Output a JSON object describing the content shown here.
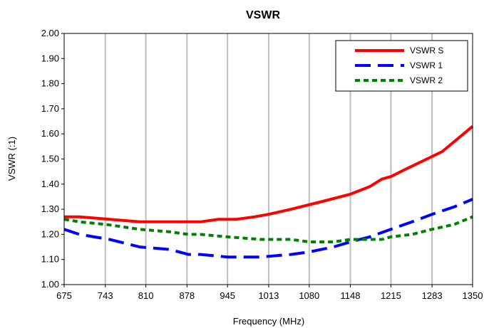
{
  "chart_data": {
    "type": "line",
    "title": "VSWR",
    "xlabel": "Frequency (MHz)",
    "ylabel": "VSWR (:1)",
    "xlim": [
      675,
      1350
    ],
    "ylim": [
      1.0,
      2.0
    ],
    "x_ticks": [
      675,
      743,
      810,
      878,
      945,
      1013,
      1080,
      1148,
      1215,
      1283,
      1350
    ],
    "y_ticks": [
      1.0,
      1.1,
      1.2,
      1.3,
      1.4,
      1.5,
      1.6,
      1.7,
      1.8,
      1.9,
      2.0
    ],
    "y_tick_labels": [
      "1.00",
      "1.10",
      "1.20",
      "1.30",
      "1.40",
      "1.50",
      "1.60",
      "1.70",
      "1.80",
      "1.90",
      "2.00"
    ],
    "grid": "vertical",
    "legend_position": "top-right",
    "series": [
      {
        "name": "VSWR S",
        "color": "#ff0000",
        "dash": "solid",
        "x": [
          675,
          700,
          750,
          800,
          850,
          880,
          900,
          930,
          960,
          990,
          1013,
          1050,
          1100,
          1148,
          1180,
          1200,
          1215,
          1240,
          1283,
          1300,
          1320,
          1350
        ],
        "y": [
          1.27,
          1.27,
          1.26,
          1.25,
          1.25,
          1.25,
          1.25,
          1.26,
          1.26,
          1.27,
          1.28,
          1.3,
          1.33,
          1.36,
          1.39,
          1.42,
          1.43,
          1.46,
          1.51,
          1.53,
          1.57,
          1.63
        ]
      },
      {
        "name": "VSWR 1",
        "color": "#0000ff",
        "dash": "long-dash",
        "x": [
          675,
          700,
          750,
          800,
          850,
          880,
          900,
          945,
          1000,
          1050,
          1080,
          1120,
          1148,
          1180,
          1215,
          1250,
          1283,
          1320,
          1350
        ],
        "y": [
          1.22,
          1.2,
          1.18,
          1.15,
          1.14,
          1.12,
          1.12,
          1.11,
          1.11,
          1.12,
          1.13,
          1.15,
          1.17,
          1.19,
          1.22,
          1.25,
          1.28,
          1.31,
          1.34
        ]
      },
      {
        "name": "VSWR 2",
        "color": "#008000",
        "dash": "dotted",
        "x": [
          675,
          700,
          743,
          800,
          850,
          880,
          900,
          945,
          1000,
          1050,
          1080,
          1120,
          1148,
          1200,
          1215,
          1250,
          1283,
          1320,
          1350
        ],
        "y": [
          1.26,
          1.25,
          1.24,
          1.22,
          1.21,
          1.2,
          1.2,
          1.19,
          1.18,
          1.18,
          1.17,
          1.17,
          1.18,
          1.18,
          1.19,
          1.2,
          1.22,
          1.24,
          1.27
        ]
      }
    ]
  }
}
